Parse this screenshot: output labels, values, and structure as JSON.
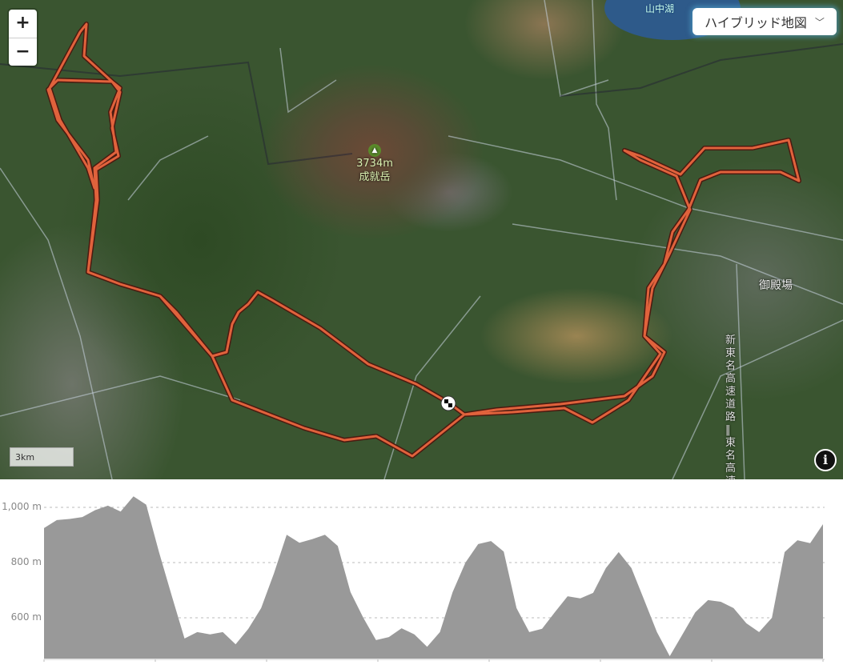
{
  "map": {
    "zoom_in_label": "+",
    "zoom_out_label": "−",
    "map_type": "ハイブリッド地図",
    "map_type_icon": "chevron-down-icon",
    "scale_label": "3km",
    "info_icon": "info-icon",
    "peak": {
      "elevation": "3734m",
      "name": "成就岳",
      "icon": "mountain-icon"
    },
    "labels": {
      "lake": "山中湖",
      "town": "御殿場",
      "highway": "新東名高速道路‖東名高速道路"
    },
    "route_color": "#e0623c",
    "start_icon": "checkered-flag-icon"
  },
  "chart_data": {
    "type": "area",
    "ylabel": "",
    "y_ticks": [
      "1,000 m",
      "800 m",
      "600 m"
    ],
    "y_tick_values": [
      1000,
      800,
      600
    ],
    "ylim": [
      452,
      1060
    ],
    "grid": true,
    "fill_color": "#999999",
    "elevation_m": [
      925,
      954,
      958,
      965,
      990,
      1006,
      985,
      1040,
      1010,
      838,
      680,
      525,
      548,
      540,
      548,
      504,
      560,
      635,
      760,
      901,
      872,
      885,
      901,
      860,
      693,
      600,
      519,
      530,
      562,
      540,
      495,
      548,
      693,
      800,
      867,
      878,
      840,
      635,
      548,
      560,
      620,
      678,
      670,
      690,
      780,
      838,
      780,
      664,
      548,
      461,
      540,
      620,
      664,
      658,
      635,
      580,
      548,
      600,
      838,
      881,
      870,
      939
    ]
  }
}
